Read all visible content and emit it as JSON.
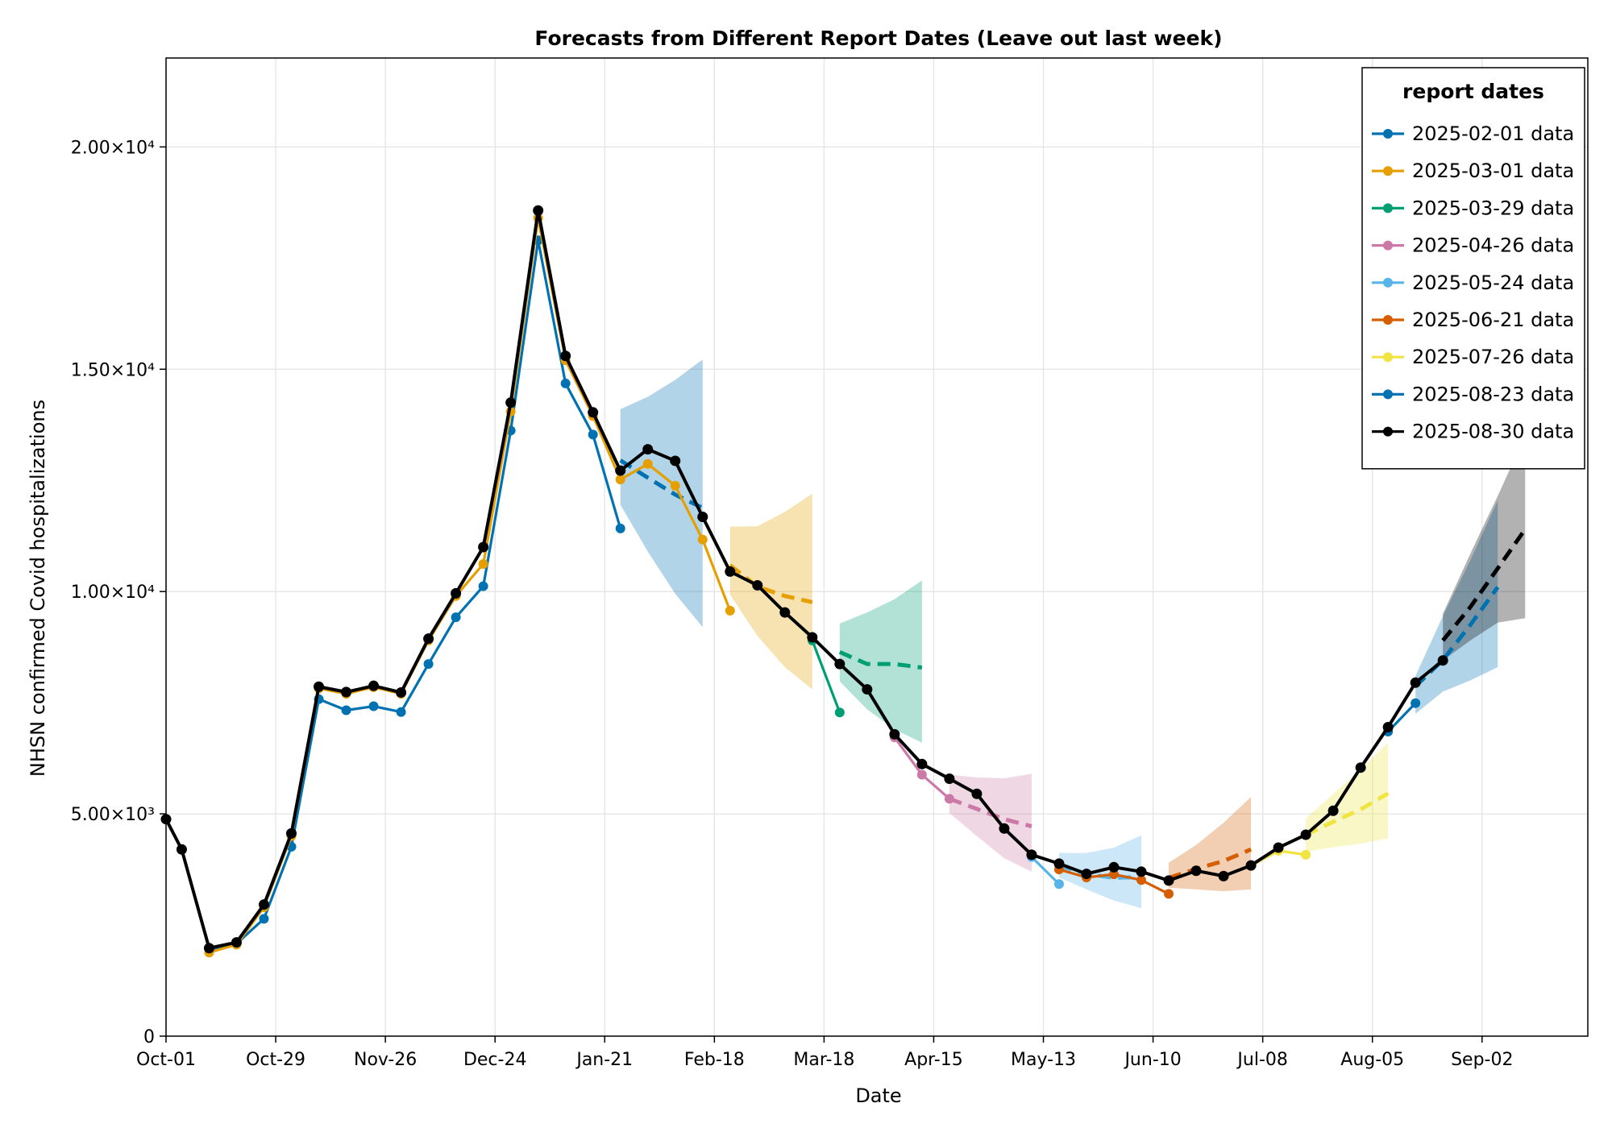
{
  "chart_data": {
    "type": "line",
    "title": "Forecasts from Different Report Dates (Leave out last week)",
    "xlabel": "Date",
    "ylabel": "NHSN confirmed Covid hospitalizations",
    "x_axis": {
      "type": "date",
      "range": [
        "2024-10-01",
        "2025-09-29"
      ],
      "ticks": [
        "2024-10-01",
        "2024-10-29",
        "2024-11-26",
        "2024-12-24",
        "2025-01-21",
        "2025-02-18",
        "2025-03-18",
        "2025-04-15",
        "2025-05-13",
        "2025-06-10",
        "2025-07-08",
        "2025-08-05",
        "2025-09-02"
      ],
      "tick_labels": [
        "Oct-01",
        "Oct-29",
        "Nov-26",
        "Dec-24",
        "Jan-21",
        "Feb-18",
        "Mar-18",
        "Apr-15",
        "May-13",
        "Jun-10",
        "Jul-08",
        "Aug-05",
        "Sep-02"
      ]
    },
    "y_axis": {
      "range": [
        0,
        22000
      ],
      "ticks": [
        0,
        5000,
        10000,
        15000,
        20000
      ],
      "tick_labels": [
        "0",
        "5.00×10³",
        "1.00×10⁴",
        "1.50×10⁴",
        "2.00×10⁴"
      ]
    },
    "grid": true,
    "legend": {
      "title": "report dates",
      "placement": "top-right"
    },
    "colors": {
      "2025-02-01": "#0072b2",
      "2025-03-01": "#e69f00",
      "2025-03-29": "#009e73",
      "2025-04-26": "#cc79a7",
      "2025-05-24": "#56b4e9",
      "2025-06-21": "#d55e00",
      "2025-07-26": "#f0e442",
      "2025-08-23": "#0072b2",
      "2025-08-30": "#000000"
    },
    "series": [
      {
        "name": "2025-02-01 data",
        "color": "#0072b2",
        "observed": [
          [
            "2024-10-12",
            1950
          ],
          [
            "2024-10-19",
            2080
          ],
          [
            "2024-10-26",
            2640
          ],
          [
            "2024-11-02",
            4260
          ],
          [
            "2024-11-09",
            7580
          ],
          [
            "2024-11-16",
            7330
          ],
          [
            "2024-11-23",
            7420
          ],
          [
            "2024-11-30",
            7290
          ],
          [
            "2024-12-07",
            8370
          ],
          [
            "2024-12-14",
            9420
          ],
          [
            "2024-12-21",
            10120
          ],
          [
            "2024-12-28",
            13620
          ],
          [
            "2025-01-04",
            17900
          ],
          [
            "2025-01-11",
            14680
          ],
          [
            "2025-01-18",
            13530
          ],
          [
            "2025-01-25",
            11420
          ]
        ],
        "forecast_median": [
          [
            "2025-01-25",
            12950
          ],
          [
            "2025-02-01",
            12560
          ],
          [
            "2025-02-08",
            12180
          ],
          [
            "2025-02-15",
            11880
          ]
        ],
        "forecast_lower": [
          [
            "2025-01-25",
            11950
          ],
          [
            "2025-02-01",
            10900
          ],
          [
            "2025-02-08",
            9950
          ],
          [
            "2025-02-15",
            9200
          ]
        ],
        "forecast_upper": [
          [
            "2025-01-25",
            14100
          ],
          [
            "2025-02-01",
            14380
          ],
          [
            "2025-02-08",
            14760
          ],
          [
            "2025-02-15",
            15220
          ]
        ]
      },
      {
        "name": "2025-03-01 data",
        "color": "#e69f00",
        "observed": [
          [
            "2024-10-12",
            1880
          ],
          [
            "2024-10-19",
            2060
          ],
          [
            "2024-10-26",
            2900
          ],
          [
            "2024-11-02",
            4500
          ],
          [
            "2024-11-09",
            7820
          ],
          [
            "2024-11-16",
            7700
          ],
          [
            "2024-11-23",
            7850
          ],
          [
            "2024-11-30",
            7700
          ],
          [
            "2024-12-07",
            8900
          ],
          [
            "2024-12-14",
            9900
          ],
          [
            "2024-12-21",
            10620
          ],
          [
            "2024-12-28",
            14050
          ],
          [
            "2025-01-04",
            18400
          ],
          [
            "2025-01-11",
            15200
          ],
          [
            "2025-01-18",
            13950
          ],
          [
            "2025-01-25",
            12520
          ],
          [
            "2025-02-01",
            12870
          ],
          [
            "2025-02-08",
            12380
          ],
          [
            "2025-02-15",
            11170
          ],
          [
            "2025-02-22",
            9570
          ]
        ],
        "forecast_median": [
          [
            "2025-02-22",
            10590
          ],
          [
            "2025-03-01",
            10110
          ],
          [
            "2025-03-08",
            9900
          ],
          [
            "2025-03-15",
            9760
          ]
        ],
        "forecast_lower": [
          [
            "2025-02-22",
            9930
          ],
          [
            "2025-03-01",
            9000
          ],
          [
            "2025-03-08",
            8300
          ],
          [
            "2025-03-15",
            7800
          ]
        ],
        "forecast_upper": [
          [
            "2025-02-22",
            11460
          ],
          [
            "2025-03-01",
            11470
          ],
          [
            "2025-03-08",
            11790
          ],
          [
            "2025-03-15",
            12200
          ]
        ]
      },
      {
        "name": "2025-03-29 data",
        "color": "#009e73",
        "observed": [
          [
            "2025-03-15",
            8900
          ],
          [
            "2025-03-22",
            7280
          ]
        ],
        "forecast_median": [
          [
            "2025-03-22",
            8640
          ],
          [
            "2025-03-29",
            8370
          ],
          [
            "2025-04-05",
            8370
          ],
          [
            "2025-04-12",
            8290
          ]
        ],
        "forecast_lower": [
          [
            "2025-03-22",
            7980
          ],
          [
            "2025-03-29",
            7350
          ],
          [
            "2025-04-05",
            6900
          ],
          [
            "2025-04-12",
            6600
          ]
        ],
        "forecast_upper": [
          [
            "2025-03-22",
            9280
          ],
          [
            "2025-03-29",
            9530
          ],
          [
            "2025-04-05",
            9830
          ],
          [
            "2025-04-12",
            10250
          ]
        ]
      },
      {
        "name": "2025-04-26 data",
        "color": "#cc79a7",
        "observed": [
          [
            "2025-04-05",
            6720
          ],
          [
            "2025-04-12",
            5880
          ],
          [
            "2025-04-19",
            5340
          ]
        ],
        "forecast_median": [
          [
            "2025-04-19",
            5340
          ],
          [
            "2025-04-26",
            5110
          ],
          [
            "2025-05-03",
            4880
          ],
          [
            "2025-05-10",
            4720
          ]
        ],
        "forecast_lower": [
          [
            "2025-04-19",
            5020
          ],
          [
            "2025-04-26",
            4500
          ],
          [
            "2025-05-03",
            4000
          ],
          [
            "2025-05-10",
            3700
          ]
        ],
        "forecast_upper": [
          [
            "2025-04-19",
            5880
          ],
          [
            "2025-04-26",
            5820
          ],
          [
            "2025-05-03",
            5800
          ],
          [
            "2025-05-10",
            5900
          ]
        ]
      },
      {
        "name": "2025-05-24 data",
        "color": "#56b4e9",
        "observed": [
          [
            "2025-05-10",
            4030
          ],
          [
            "2025-05-17",
            3420
          ]
        ],
        "forecast_median": [
          [
            "2025-05-17",
            3830
          ],
          [
            "2025-05-24",
            3650
          ],
          [
            "2025-05-31",
            3560
          ],
          [
            "2025-06-07",
            3580
          ]
        ],
        "forecast_lower": [
          [
            "2025-05-17",
            3570
          ],
          [
            "2025-05-24",
            3300
          ],
          [
            "2025-05-31",
            3050
          ],
          [
            "2025-06-07",
            2880
          ]
        ],
        "forecast_upper": [
          [
            "2025-05-17",
            4120
          ],
          [
            "2025-05-24",
            4120
          ],
          [
            "2025-05-31",
            4240
          ],
          [
            "2025-06-07",
            4520
          ]
        ]
      },
      {
        "name": "2025-06-21 data",
        "color": "#d55e00",
        "observed": [
          [
            "2025-05-17",
            3750
          ],
          [
            "2025-05-24",
            3570
          ],
          [
            "2025-05-31",
            3640
          ],
          [
            "2025-06-07",
            3510
          ],
          [
            "2025-06-14",
            3200
          ]
        ],
        "forecast_median": [
          [
            "2025-06-14",
            3560
          ],
          [
            "2025-06-21",
            3760
          ],
          [
            "2025-06-28",
            3940
          ],
          [
            "2025-07-05",
            4200
          ]
        ],
        "forecast_lower": [
          [
            "2025-06-14",
            3340
          ],
          [
            "2025-06-21",
            3300
          ],
          [
            "2025-06-28",
            3260
          ],
          [
            "2025-07-05",
            3300
          ]
        ],
        "forecast_upper": [
          [
            "2025-06-14",
            3900
          ],
          [
            "2025-06-21",
            4300
          ],
          [
            "2025-06-28",
            4800
          ],
          [
            "2025-07-05",
            5380
          ]
        ]
      },
      {
        "name": "2025-07-26 data",
        "color": "#f0e442",
        "observed": [
          [
            "2025-07-05",
            3830
          ],
          [
            "2025-07-12",
            4170
          ],
          [
            "2025-07-19",
            4080
          ]
        ],
        "forecast_median": [
          [
            "2025-07-19",
            4530
          ],
          [
            "2025-07-26",
            4820
          ],
          [
            "2025-08-02",
            5100
          ],
          [
            "2025-08-09",
            5460
          ]
        ],
        "forecast_lower": [
          [
            "2025-07-19",
            4150
          ],
          [
            "2025-07-26",
            4250
          ],
          [
            "2025-08-02",
            4330
          ],
          [
            "2025-08-09",
            4450
          ]
        ],
        "forecast_upper": [
          [
            "2025-07-19",
            4900
          ],
          [
            "2025-07-26",
            5450
          ],
          [
            "2025-08-02",
            6000
          ],
          [
            "2025-08-09",
            6600
          ]
        ]
      },
      {
        "name": "2025-08-23 data",
        "color": "#0072b2",
        "observed": [
          [
            "2025-08-09",
            6850
          ],
          [
            "2025-08-16",
            7490
          ]
        ],
        "forecast_median": [
          [
            "2025-08-16",
            7870
          ],
          [
            "2025-08-23",
            8460
          ],
          [
            "2025-08-30",
            9250
          ],
          [
            "2025-09-06",
            10100
          ]
        ],
        "forecast_lower": [
          [
            "2025-08-16",
            7250
          ],
          [
            "2025-08-23",
            7750
          ],
          [
            "2025-08-30",
            8000
          ],
          [
            "2025-09-06",
            8300
          ]
        ],
        "forecast_upper": [
          [
            "2025-08-16",
            8100
          ],
          [
            "2025-08-23",
            9450
          ],
          [
            "2025-08-30",
            10700
          ],
          [
            "2025-09-06",
            12050
          ]
        ]
      },
      {
        "name": "2025-08-30 data",
        "color": "#000000",
        "observed": [
          [
            "2024-10-01",
            4880
          ],
          [
            "2024-10-05",
            4200
          ],
          [
            "2024-10-12",
            1980
          ],
          [
            "2024-10-19",
            2110
          ],
          [
            "2024-10-26",
            2960
          ],
          [
            "2024-11-02",
            4560
          ],
          [
            "2024-11-09",
            7860
          ],
          [
            "2024-11-16",
            7740
          ],
          [
            "2024-11-23",
            7880
          ],
          [
            "2024-11-30",
            7730
          ],
          [
            "2024-12-07",
            8940
          ],
          [
            "2024-12-14",
            9960
          ],
          [
            "2024-12-21",
            11000
          ],
          [
            "2024-12-28",
            14250
          ],
          [
            "2025-01-04",
            18570
          ],
          [
            "2025-01-11",
            15300
          ],
          [
            "2025-01-18",
            14030
          ],
          [
            "2025-01-25",
            12720
          ],
          [
            "2025-02-01",
            13200
          ],
          [
            "2025-02-08",
            12940
          ],
          [
            "2025-02-15",
            11680
          ],
          [
            "2025-02-22",
            10450
          ],
          [
            "2025-03-01",
            10140
          ],
          [
            "2025-03-08",
            9530
          ],
          [
            "2025-03-15",
            8970
          ],
          [
            "2025-03-22",
            8370
          ],
          [
            "2025-03-29",
            7800
          ],
          [
            "2025-04-05",
            6790
          ],
          [
            "2025-04-12",
            6120
          ],
          [
            "2025-04-19",
            5790
          ],
          [
            "2025-04-26",
            5450
          ],
          [
            "2025-05-03",
            4670
          ],
          [
            "2025-05-10",
            4080
          ],
          [
            "2025-05-17",
            3880
          ],
          [
            "2025-05-24",
            3650
          ],
          [
            "2025-05-31",
            3800
          ],
          [
            "2025-06-07",
            3700
          ],
          [
            "2025-06-14",
            3500
          ],
          [
            "2025-06-21",
            3720
          ],
          [
            "2025-06-28",
            3600
          ],
          [
            "2025-07-05",
            3840
          ],
          [
            "2025-07-12",
            4240
          ],
          [
            "2025-07-19",
            4530
          ],
          [
            "2025-07-26",
            5070
          ],
          [
            "2025-08-02",
            6040
          ],
          [
            "2025-08-09",
            6950
          ],
          [
            "2025-08-16",
            7950
          ],
          [
            "2025-08-23",
            8450
          ]
        ],
        "forecast_median": [
          [
            "2025-08-23",
            8900
          ],
          [
            "2025-08-30",
            9650
          ],
          [
            "2025-09-06",
            10520
          ],
          [
            "2025-09-13",
            11400
          ]
        ],
        "forecast_lower": [
          [
            "2025-08-23",
            8450
          ],
          [
            "2025-08-30",
            8900
          ],
          [
            "2025-09-06",
            9300
          ],
          [
            "2025-09-13",
            9400
          ]
        ],
        "forecast_upper": [
          [
            "2025-08-23",
            9500
          ],
          [
            "2025-08-30",
            10850
          ],
          [
            "2025-09-06",
            12150
          ],
          [
            "2025-09-13",
            13500
          ]
        ]
      }
    ]
  }
}
